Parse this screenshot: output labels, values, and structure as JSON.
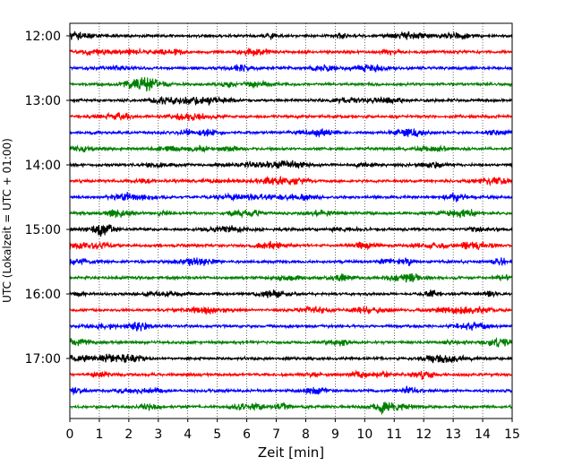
{
  "chart_data": {
    "type": "line",
    "title": "",
    "xlabel": "Zeit  [min]",
    "ylabel": "UTC (Lokalzeit = UTC + 01:00)",
    "xlim": [
      0,
      15
    ],
    "x_ticks": [
      "0",
      "1",
      "2",
      "3",
      "4",
      "5",
      "6",
      "7",
      "8",
      "9",
      "10",
      "11",
      "12",
      "13",
      "14",
      "15"
    ],
    "y_ticks": [
      "12:00",
      "13:00",
      "14:00",
      "15:00",
      "16:00",
      "17:00"
    ],
    "grid": "vertical dotted",
    "trace_colors": [
      "#000000",
      "#ff0000",
      "#0000ff",
      "#008000"
    ],
    "rows_per_hour": 4,
    "row_minutes": 15,
    "start_time": "12:00",
    "rows": [
      {
        "start": "12:00"
      },
      {
        "start": "12:15"
      },
      {
        "start": "12:30"
      },
      {
        "start": "12:45"
      },
      {
        "start": "13:00"
      },
      {
        "start": "13:15"
      },
      {
        "start": "13:30"
      },
      {
        "start": "13:45"
      },
      {
        "start": "14:00"
      },
      {
        "start": "14:15"
      },
      {
        "start": "14:30"
      },
      {
        "start": "14:45"
      },
      {
        "start": "15:00"
      },
      {
        "start": "15:15"
      },
      {
        "start": "15:30"
      },
      {
        "start": "15:45"
      },
      {
        "start": "16:00"
      },
      {
        "start": "16:15"
      },
      {
        "start": "16:30"
      },
      {
        "start": "16:45"
      },
      {
        "start": "17:00"
      },
      {
        "start": "17:15"
      },
      {
        "start": "17:30"
      },
      {
        "start": "17:45"
      }
    ]
  }
}
